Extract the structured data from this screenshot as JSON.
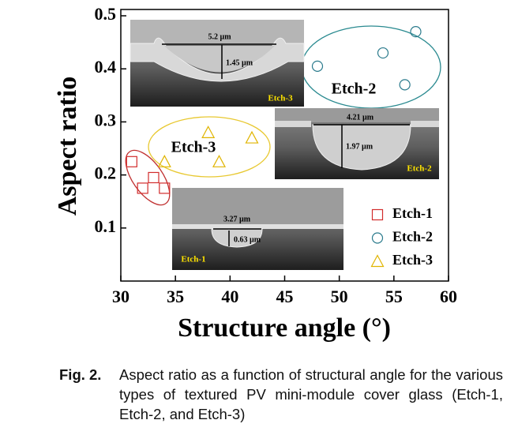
{
  "chart_data": {
    "type": "scatter",
    "xlabel": "Structure angle (°)",
    "ylabel": "Aspect ratio",
    "xlim": [
      30,
      60
    ],
    "ylim": [
      0,
      0.5
    ],
    "xticks": [
      30,
      35,
      40,
      45,
      50,
      55,
      60
    ],
    "yticks": [
      0.1,
      0.2,
      0.3,
      0.4,
      0.5
    ],
    "legend": "lower right",
    "series": [
      {
        "name": "Etch-1",
        "color": "#d22c2c",
        "marker": "square",
        "x": [
          31,
          32,
          33,
          34
        ],
        "values": [
          0.225,
          0.175,
          0.195,
          0.175
        ]
      },
      {
        "name": "Etch-2",
        "color": "#2a7a8c",
        "marker": "circle",
        "x": [
          48,
          54,
          57,
          56
        ],
        "values": [
          0.405,
          0.43,
          0.47,
          0.37
        ]
      },
      {
        "name": "Etch-3",
        "color": "#e0b400",
        "marker": "triangle",
        "x": [
          34,
          38,
          39,
          42
        ],
        "values": [
          0.225,
          0.28,
          0.225,
          0.27
        ]
      }
    ],
    "annotations": [
      "Etch-3",
      "Etch-2"
    ],
    "insets": [
      {
        "width_label": "5.2 µm",
        "height_label": "1.45 µm",
        "label": "Etch-3"
      },
      {
        "width_label": "4.21 µm",
        "height_label": "1.97 µm",
        "label": "Etch-2"
      },
      {
        "width_label": "3.27 µm",
        "height_label": "0.63 µm",
        "label": "Etch-1"
      }
    ]
  },
  "caption": {
    "label": "Fig. 2.",
    "text": "Aspect ratio as a function of structural angle for the various types of textured PV mini-module cover glass (Etch-1, Etch-2, and Etch-3)"
  }
}
